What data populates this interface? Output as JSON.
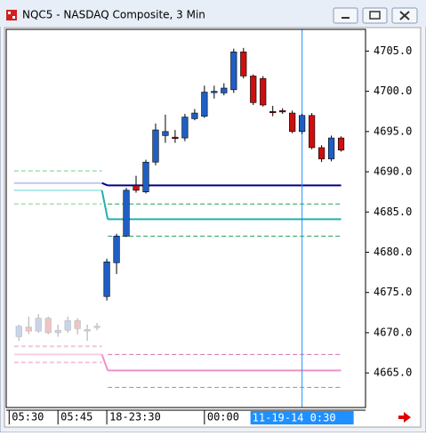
{
  "window_title": "NQC5 - NASDAQ Composite, 3 Min",
  "chart_data": {
    "type": "candlestick",
    "xlim": [
      -10.3,
      26.5
    ],
    "ylim": [
      4660.7,
      4707.7
    ],
    "yticks": [
      {
        "value": 4705,
        "label": "4705.0"
      },
      {
        "value": 4700,
        "label": "4700.0"
      },
      {
        "value": 4695,
        "label": "4695.0"
      },
      {
        "value": 4690,
        "label": "4690.0"
      },
      {
        "value": 4685,
        "label": "4685.0"
      },
      {
        "value": 4680,
        "label": "4680.0"
      },
      {
        "value": 4675,
        "label": "4675.0"
      },
      {
        "value": 4670,
        "label": "4670.0"
      },
      {
        "value": 4665,
        "label": "4665.0"
      }
    ],
    "xticks": [
      {
        "value": -10,
        "label": "05:30"
      },
      {
        "value": -5,
        "label": "05:45"
      },
      {
        "value": 0,
        "label": "18-23:30"
      },
      {
        "value": 10,
        "label": "00:00"
      }
    ],
    "cursor": {
      "x": 20,
      "label": "11-19-14  0:30",
      "color": "#1e90ff"
    },
    "series": [
      {
        "up_color": "#c8d4ec",
        "down_color": "#f0c4c4",
        "x": [
          -9,
          -8,
          -7,
          -6,
          -5,
          -4,
          -3,
          -2,
          -1
        ],
        "open": [
          4669.5,
          4670.7,
          4670.2,
          4671.8,
          4670.0,
          4670.3,
          4671.5,
          4670.2,
          4670.7
        ],
        "high": [
          4671.0,
          4672.0,
          4672.3,
          4672.0,
          4671.0,
          4672.0,
          4671.8,
          4671.0,
          4671.2
        ],
        "low": [
          4669.0,
          4669.8,
          4670.0,
          4669.8,
          4669.5,
          4670.0,
          4669.8,
          4669.0,
          4670.3
        ],
        "close": [
          4670.8,
          4670.2,
          4671.8,
          4670.0,
          4670.3,
          4671.5,
          4670.5,
          4670.4,
          4670.8
        ]
      },
      {
        "up_color": "#1f5fc4",
        "down_color": "#cc1010",
        "x": [
          0,
          1,
          2,
          3,
          4,
          5,
          6,
          7,
          8,
          9,
          10,
          11,
          12,
          13,
          14,
          15,
          16,
          17,
          18,
          19,
          20,
          21,
          22,
          23,
          24
        ],
        "open": [
          4674.5,
          4678.7,
          4682.0,
          4688.3,
          4687.5,
          4691.2,
          4694.5,
          4694.3,
          4694.2,
          4696.6,
          4696.9,
          4699.9,
          4699.8,
          4700.2,
          4704.9,
          4701.9,
          4701.6,
          4697.5,
          4697.6,
          4697.3,
          4695.0,
          4697.0,
          4693.0,
          4691.6,
          4694.2
        ],
        "high": [
          4679.2,
          4682.3,
          4688.0,
          4689.5,
          4691.5,
          4696.0,
          4697.1,
          4695.2,
          4697.2,
          4697.8,
          4700.7,
          4700.7,
          4701.0,
          4705.3,
          4705.4,
          4702.1,
          4701.9,
          4698.2,
          4697.9,
          4697.6,
          4697.2,
          4697.3,
          4693.3,
          4694.5,
          4694.4
        ],
        "low": [
          4674.0,
          4677.3,
          4681.9,
          4687.4,
          4687.3,
          4690.8,
          4693.6,
          4693.6,
          4693.8,
          4696.4,
          4696.7,
          4699.1,
          4699.5,
          4699.8,
          4701.6,
          4698.3,
          4698.1,
          4696.9,
          4697.2,
          4694.8,
          4694.7,
          4692.8,
          4691.2,
          4691.3,
          4692.5
        ],
        "close": [
          4678.8,
          4682.0,
          4687.7,
          4687.7,
          4691.2,
          4695.2,
          4695.0,
          4694.2,
          4696.8,
          4697.3,
          4699.9,
          4700.0,
          4700.4,
          4704.9,
          4701.9,
          4698.6,
          4698.3,
          4697.4,
          4697.5,
          4695.0,
          4697.0,
          4693.0,
          4691.6,
          4694.2,
          4692.7
        ]
      }
    ],
    "levels": [
      {
        "color": "#00008b",
        "prior_color": "#c0c8f0",
        "dash": false,
        "values": [
          4688.6,
          4688.3
        ]
      },
      {
        "color": "#20b0b0",
        "prior_color": "#b0e8e8",
        "dash": false,
        "values": [
          4687.7,
          4684.1
        ]
      },
      {
        "color": "#20a050",
        "prior_color": "#b8e4c4",
        "dash": true,
        "values": [
          4690.1,
          4686.0
        ]
      },
      {
        "color": "#20a050",
        "prior_color": "#b8e4c4",
        "dash": true,
        "values": [
          4686.0,
          4682.0
        ]
      },
      {
        "color": "#f090c8",
        "prior_color": "#f8d0e4",
        "dash": false,
        "values": [
          4667.3,
          4665.3
        ]
      },
      {
        "color": "#d070b0",
        "prior_color": "#f0c8e0",
        "dash": true,
        "values": [
          4668.3,
          4667.3
        ]
      },
      {
        "color": "#d070b0",
        "prior_color": "#f0c8e0",
        "dash": true,
        "values": [
          4666.3,
          4663.2
        ]
      }
    ]
  }
}
